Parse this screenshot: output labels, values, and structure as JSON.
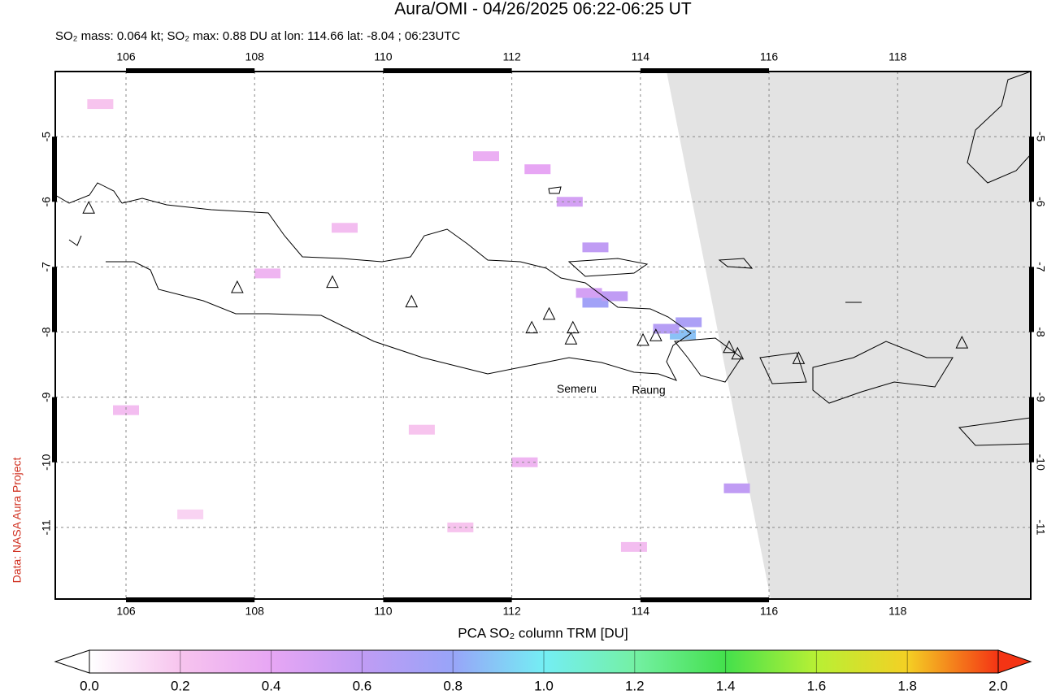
{
  "chart_data": {
    "type": "map",
    "title": "Aura/OMI - 04/26/2025 06:22-06:25 UT",
    "subtitle": "SO₂ mass: 0.064 kt; SO₂ max: 0.88 DU at lon: 114.66 lat: -8.04 ; 06:23UTC",
    "side_note": "Data: NASA Aura Project",
    "xlim": [
      104.9,
      120.07
    ],
    "ylim": [
      -12.1,
      -4.0
    ],
    "xticks": [
      106,
      108,
      110,
      112,
      114,
      116,
      118
    ],
    "yticks": [
      -5,
      -6,
      -7,
      -8,
      -9,
      -10,
      -11
    ],
    "grid": true,
    "volcanoes": [
      {
        "lon": 105.42,
        "lat": -6.1
      },
      {
        "lon": 107.73,
        "lat": -7.32
      },
      {
        "lon": 109.21,
        "lat": -7.24
      },
      {
        "lon": 110.44,
        "lat": -7.54
      },
      {
        "lon": 112.31,
        "lat": -7.94
      },
      {
        "lon": 112.58,
        "lat": -7.73
      },
      {
        "lon": 112.95,
        "lat": -7.94
      },
      {
        "lon": 112.92,
        "lat": -8.11
      },
      {
        "lon": 114.04,
        "lat": -8.13
      },
      {
        "lon": 114.24,
        "lat": -8.06
      },
      {
        "lon": 115.38,
        "lat": -8.24
      },
      {
        "lon": 115.51,
        "lat": -8.34
      },
      {
        "lon": 116.46,
        "lat": -8.41
      },
      {
        "lon": 119.0,
        "lat": -8.17
      }
    ],
    "volcano_labels": [
      {
        "text": "Semeru",
        "lon": 112.92,
        "lat": -8.11
      },
      {
        "text": "Raung",
        "lon": 114.04,
        "lat": -8.13
      }
    ],
    "so2_pixels": [
      {
        "lon": 114.66,
        "lat": -8.04,
        "value": 0.88
      },
      {
        "lon": 114.75,
        "lat": -7.85,
        "value": 0.7
      },
      {
        "lon": 114.4,
        "lat": -7.95,
        "value": 0.65
      },
      {
        "lon": 113.3,
        "lat": -7.55,
        "value": 0.75
      },
      {
        "lon": 113.6,
        "lat": -7.45,
        "value": 0.6
      },
      {
        "lon": 113.2,
        "lat": -7.4,
        "value": 0.5
      },
      {
        "lon": 113.3,
        "lat": -6.7,
        "value": 0.6
      },
      {
        "lon": 112.9,
        "lat": -6.0,
        "value": 0.5
      },
      {
        "lon": 112.4,
        "lat": -5.5,
        "value": 0.4
      },
      {
        "lon": 111.6,
        "lat": -5.3,
        "value": 0.35
      },
      {
        "lon": 115.5,
        "lat": -10.4,
        "value": 0.6
      },
      {
        "lon": 109.4,
        "lat": -6.4,
        "value": 0.25
      },
      {
        "lon": 108.2,
        "lat": -7.1,
        "value": 0.3
      },
      {
        "lon": 106.0,
        "lat": -9.2,
        "value": 0.25
      },
      {
        "lon": 110.6,
        "lat": -9.5,
        "value": 0.2
      },
      {
        "lon": 112.2,
        "lat": -10.0,
        "value": 0.3
      },
      {
        "lon": 113.9,
        "lat": -11.3,
        "value": 0.25
      },
      {
        "lon": 107.0,
        "lat": -10.8,
        "value": 0.15
      },
      {
        "lon": 111.2,
        "lat": -11.0,
        "value": 0.2
      },
      {
        "lon": 105.6,
        "lat": -4.5,
        "value": 0.2
      }
    ],
    "colorbar": {
      "label": "PCA SO₂ column TRM [DU]",
      "lim": [
        0,
        2
      ],
      "colors": [
        "#ffffff",
        "#f7c4ee",
        "#e7a6f4",
        "#c09cf4",
        "#98a4f8",
        "#74eef4",
        "#74f0a4",
        "#44e04c",
        "#b8f034",
        "#f4d024",
        "#f43414"
      ],
      "ticks": [
        {
          "value": 0,
          "label": "0.0"
        },
        {
          "value": 0.2,
          "label": "0.2"
        },
        {
          "value": 0.4,
          "label": "0.4"
        },
        {
          "value": 0.6,
          "label": "0.6"
        },
        {
          "value": 0.8,
          "label": "0.8"
        },
        {
          "value": 1,
          "label": "1.0"
        },
        {
          "value": 1.2,
          "label": "1.2"
        },
        {
          "value": 1.4,
          "label": "1.4"
        },
        {
          "value": 1.6,
          "label": "1.6"
        },
        {
          "value": 1.8,
          "label": "1.8"
        },
        {
          "value": 2,
          "label": "2.0"
        }
      ]
    }
  }
}
